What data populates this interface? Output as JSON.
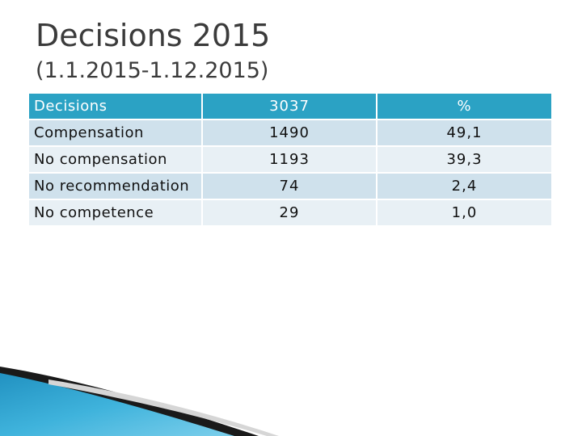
{
  "slide": {
    "title": "Decisions 2015",
    "subtitle": "(1.1.2015-1.12.2015)"
  },
  "table": {
    "headers": [
      "Decisions",
      "3037",
      "%"
    ],
    "rows": [
      [
        "Compensation",
        "1490",
        "49,1"
      ],
      [
        "No compensation",
        "1193",
        "39,3"
      ],
      [
        "No recommendation",
        "74",
        "2,4"
      ],
      [
        "No competence",
        "29",
        "1,0"
      ]
    ]
  },
  "colors": {
    "header_bg": "#2ba2c4",
    "row_odd": "#cfe1ec",
    "row_even": "#e8f0f5",
    "title_text": "#3b3b3b",
    "accent_blue": "#2aa0c8"
  },
  "decoration": {
    "icon": "swoosh-corner-icon"
  }
}
